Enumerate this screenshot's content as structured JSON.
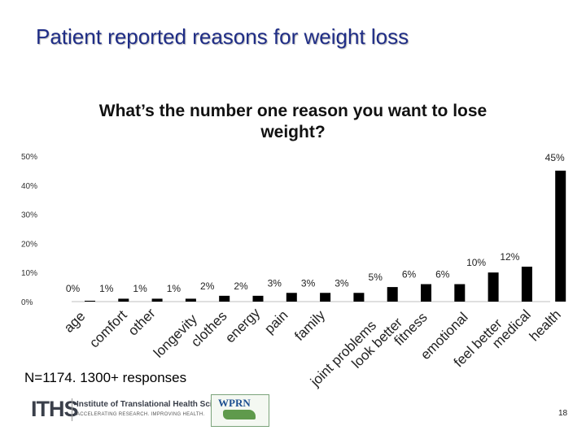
{
  "slide": {
    "title": "Patient reported reasons for weight loss",
    "footnote": "N=1174. 1300+ responses",
    "page_number": "18"
  },
  "logos": {
    "iths_mark": "ITHS",
    "iths_name": "Institute of Translational Health Sciences",
    "iths_tagline": "ACCELERATING RESEARCH. IMPROVING HEALTH.",
    "wprn_mark": "WPRN"
  },
  "chart_data": {
    "type": "bar",
    "title": "What’s the number one reason you want to lose weight?",
    "categories": [
      "age",
      "comfort",
      "other",
      "longevity",
      "clothes",
      "energy",
      "pain",
      "family",
      "joint problems",
      "look better",
      "fitness",
      "emotional",
      "feel better",
      "medical",
      "health"
    ],
    "values": [
      0.3,
      1,
      1,
      1,
      2,
      2,
      3,
      3,
      3,
      5,
      6,
      6,
      10,
      12,
      45
    ],
    "value_labels": [
      "0%",
      "1%",
      "1%",
      "1%",
      "2%",
      "2%",
      "3%",
      "3%",
      "3%",
      "5%",
      "6%",
      "6%",
      "10%",
      "12%",
      "45%"
    ],
    "yticks": [
      "0%",
      "10%",
      "20%",
      "30%",
      "40%",
      "50%"
    ],
    "ylim": [
      0,
      50
    ],
    "grid": false,
    "bar_color": "#000000"
  }
}
